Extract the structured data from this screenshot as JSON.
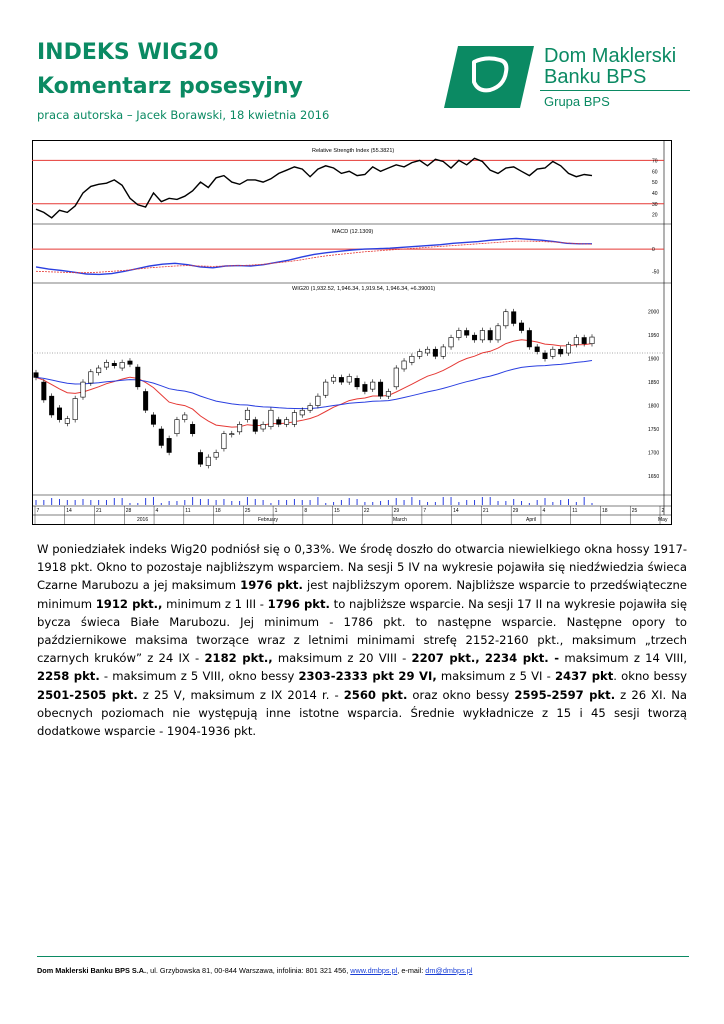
{
  "header": {
    "title_line1": "INDEKS WIG20",
    "title_line2": "Komentarz posesyjny",
    "author": "praca autorska – Jacek Borawski, 18 kwietnia 2016"
  },
  "logo": {
    "name_line1": "Dom Maklerski",
    "name_line2": "Banku BPS",
    "group": "Grupa BPS",
    "brand_color": "#0b8a63"
  },
  "chart_data": [
    {
      "type": "line",
      "title": "Relative Strength Index (55.3821)",
      "y_ticks": [
        70,
        60,
        50,
        40,
        30,
        20
      ],
      "ylim": [
        15,
        75
      ],
      "hlines": [
        70,
        30
      ],
      "series": [
        {
          "values": [
            25,
            22,
            17,
            24,
            22,
            28,
            40,
            46,
            48,
            49,
            52,
            47,
            35,
            29,
            27,
            40,
            32,
            35,
            34,
            37,
            42,
            50,
            45,
            54,
            56,
            50,
            48,
            52,
            52,
            50,
            53,
            58,
            61,
            64,
            62,
            55,
            62,
            65,
            63,
            58,
            60,
            56,
            57,
            64,
            60,
            63,
            66,
            64,
            68,
            70,
            65,
            71,
            69,
            63,
            70,
            66,
            72,
            69,
            61,
            58,
            63,
            64,
            60,
            56,
            62,
            63,
            69,
            65,
            58,
            55,
            57,
            56
          ]
        }
      ]
    },
    {
      "type": "line",
      "title": "MACD (12.1309)",
      "y_ticks": [
        0,
        -50
      ],
      "ylim": [
        -65,
        25
      ],
      "hlines": [
        0
      ],
      "series": [
        {
          "name": "MACD",
          "values": [
            -40,
            -45,
            -48,
            -52,
            -56,
            -57,
            -55,
            -50,
            -44,
            -38,
            -34,
            -32,
            -35,
            -40,
            -42,
            -38,
            -37,
            -38,
            -35,
            -30,
            -25,
            -18,
            -12,
            -8,
            -5,
            -2,
            0,
            1,
            2,
            4,
            6,
            8,
            10,
            13,
            15,
            17,
            20,
            22,
            24,
            22,
            20,
            17,
            13,
            12,
            12
          ]
        },
        {
          "name": "Signal",
          "values": [
            -50,
            -51,
            -52,
            -53,
            -53,
            -52,
            -50,
            -48,
            -45,
            -42,
            -40,
            -38,
            -37,
            -38,
            -39,
            -38,
            -37,
            -36,
            -34,
            -31,
            -28,
            -24,
            -19,
            -15,
            -12,
            -9,
            -6,
            -4,
            -2,
            0,
            2,
            4,
            6,
            8,
            10,
            12,
            14,
            16,
            18,
            18,
            17,
            16,
            14,
            12,
            11
          ]
        }
      ]
    },
    {
      "type": "candlestick",
      "title": "WIG20 (1,932.52, 1,946.34, 1,919.54, 1,946.34, +6.39001)",
      "y_ticks": [
        2000,
        1950,
        1900,
        1850,
        1800,
        1750,
        1700,
        1650
      ],
      "ylim": [
        1620,
        2025
      ],
      "reference_line": 1912,
      "candles": [
        {
          "o": 1870,
          "c": 1860
        },
        {
          "o": 1850,
          "c": 1812
        },
        {
          "o": 1820,
          "c": 1780
        },
        {
          "o": 1795,
          "c": 1770
        },
        {
          "o": 1762,
          "c": 1772
        },
        {
          "o": 1770,
          "c": 1815
        },
        {
          "o": 1818,
          "c": 1850
        },
        {
          "o": 1848,
          "c": 1872
        },
        {
          "o": 1870,
          "c": 1880
        },
        {
          "o": 1882,
          "c": 1892
        },
        {
          "o": 1890,
          "c": 1885
        },
        {
          "o": 1880,
          "c": 1892
        },
        {
          "o": 1895,
          "c": 1888
        },
        {
          "o": 1882,
          "c": 1840
        },
        {
          "o": 1830,
          "c": 1790
        },
        {
          "o": 1780,
          "c": 1760
        },
        {
          "o": 1750,
          "c": 1715
        },
        {
          "o": 1730,
          "c": 1700
        },
        {
          "o": 1740,
          "c": 1770
        },
        {
          "o": 1770,
          "c": 1780
        },
        {
          "o": 1760,
          "c": 1740
        },
        {
          "o": 1700,
          "c": 1675
        },
        {
          "o": 1672,
          "c": 1690
        },
        {
          "o": 1690,
          "c": 1700
        },
        {
          "o": 1708,
          "c": 1740
        },
        {
          "o": 1738,
          "c": 1740
        },
        {
          "o": 1744,
          "c": 1760
        },
        {
          "o": 1770,
          "c": 1790
        },
        {
          "o": 1770,
          "c": 1745
        },
        {
          "o": 1750,
          "c": 1760
        },
        {
          "o": 1755,
          "c": 1790
        },
        {
          "o": 1770,
          "c": 1760
        },
        {
          "o": 1760,
          "c": 1770
        },
        {
          "o": 1760,
          "c": 1785
        },
        {
          "o": 1780,
          "c": 1790
        },
        {
          "o": 1790,
          "c": 1800
        },
        {
          "o": 1800,
          "c": 1820
        },
        {
          "o": 1822,
          "c": 1850
        },
        {
          "o": 1852,
          "c": 1860
        },
        {
          "o": 1860,
          "c": 1850
        },
        {
          "o": 1850,
          "c": 1862
        },
        {
          "o": 1858,
          "c": 1840
        },
        {
          "o": 1845,
          "c": 1830
        },
        {
          "o": 1835,
          "c": 1850
        },
        {
          "o": 1850,
          "c": 1820
        },
        {
          "o": 1820,
          "c": 1830
        },
        {
          "o": 1840,
          "c": 1880
        },
        {
          "o": 1878,
          "c": 1895
        },
        {
          "o": 1892,
          "c": 1905
        },
        {
          "o": 1905,
          "c": 1915
        },
        {
          "o": 1912,
          "c": 1920
        },
        {
          "o": 1920,
          "c": 1905
        },
        {
          "o": 1905,
          "c": 1925
        },
        {
          "o": 1925,
          "c": 1945
        },
        {
          "o": 1945,
          "c": 1960
        },
        {
          "o": 1960,
          "c": 1950
        },
        {
          "o": 1950,
          "c": 1940
        },
        {
          "o": 1940,
          "c": 1960
        },
        {
          "o": 1960,
          "c": 1940
        },
        {
          "o": 1940,
          "c": 1970
        },
        {
          "o": 1970,
          "c": 2000
        },
        {
          "o": 2000,
          "c": 1975
        },
        {
          "o": 1976,
          "c": 1960
        },
        {
          "o": 1960,
          "c": 1925
        },
        {
          "o": 1925,
          "c": 1915
        },
        {
          "o": 1912,
          "c": 1900
        },
        {
          "o": 1905,
          "c": 1920
        },
        {
          "o": 1920,
          "c": 1910
        },
        {
          "o": 1912,
          "c": 1930
        },
        {
          "o": 1930,
          "c": 1945
        },
        {
          "o": 1945,
          "c": 1932
        },
        {
          "o": 1932,
          "c": 1946
        }
      ],
      "x_ticks": [
        "7",
        "14",
        "21",
        "28",
        "4",
        "11",
        "18",
        "25",
        "1",
        "8",
        "15",
        "22",
        "29",
        "7",
        "14",
        "21",
        "29",
        "4",
        "11",
        "18",
        "25",
        "2"
      ],
      "month_labels": [
        "2016",
        "February",
        "March",
        "April",
        "May"
      ]
    }
  ],
  "paragraph": [
    {
      "t": "W poniedziałek indeks Wig20 podniósł się o 0,33%. We środę doszło do otwarcia niewielkiego okna hossy 1917-1918 pkt. Okno to pozostaje najbliższym wsparciem. Na sesji 5 IV na wykresie pojawiła się niedźwiedzia świeca Czarne Marubozu a jej maksimum ",
      "b": false
    },
    {
      "t": "1976 pkt.",
      "b": true
    },
    {
      "t": " jest najbliższym oporem. Najbliższe wsparcie to przedświąteczne minimum ",
      "b": false
    },
    {
      "t": "1912 pkt.,",
      "b": true
    },
    {
      "t": " minimum z 1 III - ",
      "b": false
    },
    {
      "t": "1796 pkt.",
      "b": true
    },
    {
      "t": " to najbliższe wsparcie. Na sesji 17 II na wykresie pojawiła się bycza świeca Białe Marubozu. Jej minimum - 1786 pkt. to następne wsparcie. Następne opory to październikowe maksima tworzące wraz z letnimi minimami strefę 2152-2160 pkt., maksimum „trzech czarnych kruków” z 24 IX - ",
      "b": false
    },
    {
      "t": "2182 pkt.,",
      "b": true
    },
    {
      "t": "  maksimum z 20 VIII - ",
      "b": false
    },
    {
      "t": "2207 pkt.,",
      "b": true
    },
    {
      "t": " ",
      "b": false
    },
    {
      "t": "2234 pkt. -",
      "b": true
    },
    {
      "t": " maksimum z 14 VIII, ",
      "b": false
    },
    {
      "t": "2258 pkt.",
      "b": true
    },
    {
      "t": " - maksimum z 5 VIII, okno bessy ",
      "b": false
    },
    {
      "t": "2303-2333 pkt 29 VI,",
      "b": true
    },
    {
      "t": " maksimum z 5 VI - ",
      "b": false
    },
    {
      "t": "2437 pkt",
      "b": true
    },
    {
      "t": ". okno bessy  ",
      "b": false
    },
    {
      "t": "2501-2505 pkt.",
      "b": true
    },
    {
      "t": " z 25 V, maksimum z IX 2014 r. -  ",
      "b": false
    },
    {
      "t": "2560 pkt.",
      "b": true
    },
    {
      "t": " oraz okno bessy ",
      "b": false
    },
    {
      "t": "2595-2597 pkt.",
      "b": true
    },
    {
      "t": " z 26 XI. Na obecnych poziomach nie występują inne istotne wsparcia. Średnie wykładnicze z 15 i 45 sesji tworzą dodatkowe wsparcie - 1904-1936 pkt.",
      "b": false
    }
  ],
  "footer": {
    "company": "Dom Maklerski Banku BPS S.A.",
    "address": ", ul. Grzybowska 81, 00-844 Warszawa, infolinia: 801 321 456, ",
    "website": "www.dmbps.pl",
    "email_label": ", e-mail: ",
    "email": "dm@dmbps.pl"
  }
}
